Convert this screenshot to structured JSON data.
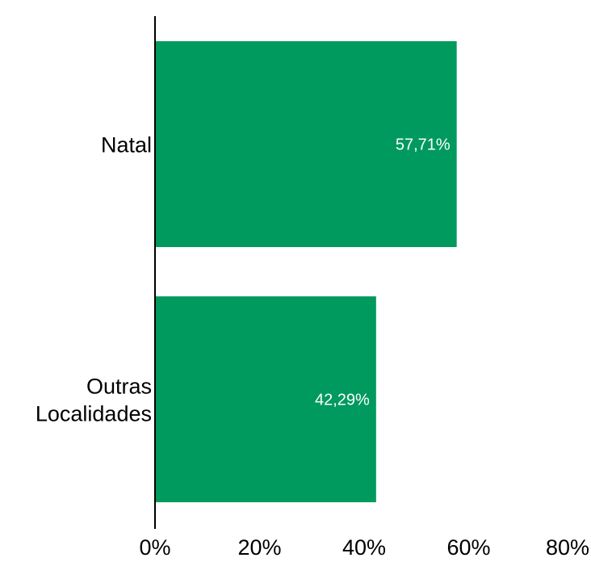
{
  "chart_data": {
    "type": "bar",
    "orientation": "horizontal",
    "categories": [
      [
        "Natal"
      ],
      [
        "Outras",
        "Localidades"
      ]
    ],
    "values": [
      57.71,
      42.29
    ],
    "data_labels": [
      "57,71%",
      "42,29%"
    ],
    "x_ticks": [
      0,
      20,
      40,
      60,
      80
    ],
    "x_tick_labels": [
      "0%",
      "20%",
      "40%",
      "60%",
      "80%"
    ],
    "xlim": [
      0,
      80
    ],
    "grid": false,
    "legend": "none",
    "bar_color": "#009a5e",
    "axis_color": "#000000",
    "data_label_color": "#ffffff"
  }
}
